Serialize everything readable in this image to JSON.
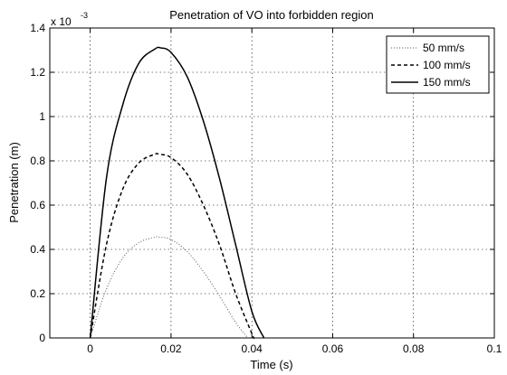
{
  "chart_data": {
    "type": "line",
    "title": "Penetration of VO into forbidden region",
    "xlabel": "Time (s)",
    "ylabel": "Penetration (m)",
    "y_multiplier": "x 10",
    "y_exponent": "-3",
    "xlim": [
      -0.01,
      0.1
    ],
    "ylim": [
      0,
      1.4
    ],
    "xticks": [
      0,
      0.02,
      0.04,
      0.06,
      0.08,
      0.1
    ],
    "xtick_labels": [
      "0",
      "0.02",
      "0.04",
      "0.06",
      "0.08",
      "0.1"
    ],
    "yticks": [
      0,
      0.2,
      0.4,
      0.6,
      0.8,
      1.0,
      1.2,
      1.4
    ],
    "ytick_labels": [
      "0",
      "0.2",
      "0.4",
      "0.6",
      "0.8",
      "1",
      "1.2",
      "1.4"
    ],
    "grid": true,
    "legend_position": "top-right",
    "series": [
      {
        "name": "50 mm/s",
        "style": "dotted",
        "color": "#555555",
        "x": [
          0,
          0.004,
          0.008,
          0.012,
          0.016,
          0.017,
          0.02,
          0.024,
          0.028,
          0.032,
          0.036,
          0.039
        ],
        "y": [
          0,
          0.22,
          0.36,
          0.43,
          0.455,
          0.455,
          0.445,
          0.39,
          0.3,
          0.19,
          0.07,
          0
        ]
      },
      {
        "name": "100 mm/s",
        "style": "dashed",
        "color": "#000000",
        "x": [
          0,
          0.004,
          0.008,
          0.012,
          0.016,
          0.017,
          0.02,
          0.024,
          0.028,
          0.032,
          0.036,
          0.04,
          0.0405
        ],
        "y": [
          0,
          0.42,
          0.67,
          0.79,
          0.83,
          0.83,
          0.815,
          0.74,
          0.6,
          0.42,
          0.2,
          0.02,
          0
        ]
      },
      {
        "name": "150 mm/s",
        "style": "solid",
        "color": "#000000",
        "x": [
          0,
          0.004,
          0.008,
          0.012,
          0.016,
          0.0175,
          0.02,
          0.024,
          0.028,
          0.032,
          0.036,
          0.04,
          0.043
        ],
        "y": [
          0,
          0.72,
          1.05,
          1.24,
          1.305,
          1.31,
          1.29,
          1.18,
          0.98,
          0.72,
          0.42,
          0.12,
          0
        ]
      }
    ]
  }
}
